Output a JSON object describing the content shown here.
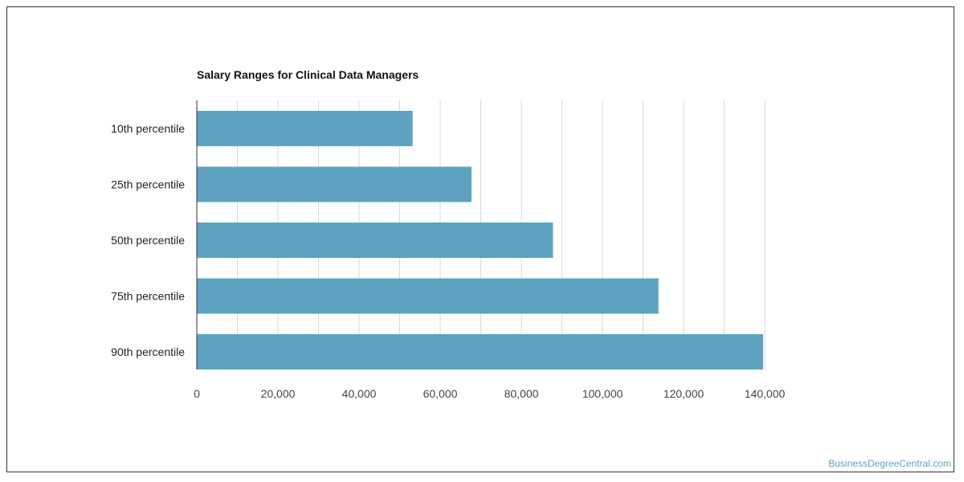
{
  "chart_data": {
    "type": "bar",
    "orientation": "horizontal",
    "title": "Salary Ranges for Clinical Data Managers",
    "xlabel": "",
    "ylabel": "",
    "categories": [
      "10th percentile",
      "25th percentile",
      "50th percentile",
      "75th percentile",
      "90th percentile"
    ],
    "values": [
      53200,
      67700,
      87800,
      113800,
      139600
    ],
    "xlim": [
      0,
      140000
    ],
    "x_ticks": [
      0,
      20000,
      40000,
      60000,
      80000,
      100000,
      120000,
      140000
    ],
    "x_tick_labels": [
      "0",
      "20,000",
      "40,000",
      "60,000",
      "80,000",
      "100,000",
      "120,000",
      "140,000"
    ],
    "grid": true,
    "bar_color": "#5ea3c0",
    "grid_color": "#d9d9d9",
    "axis_color": "#333333"
  },
  "watermark": "BusinessDegreeCentral.com"
}
